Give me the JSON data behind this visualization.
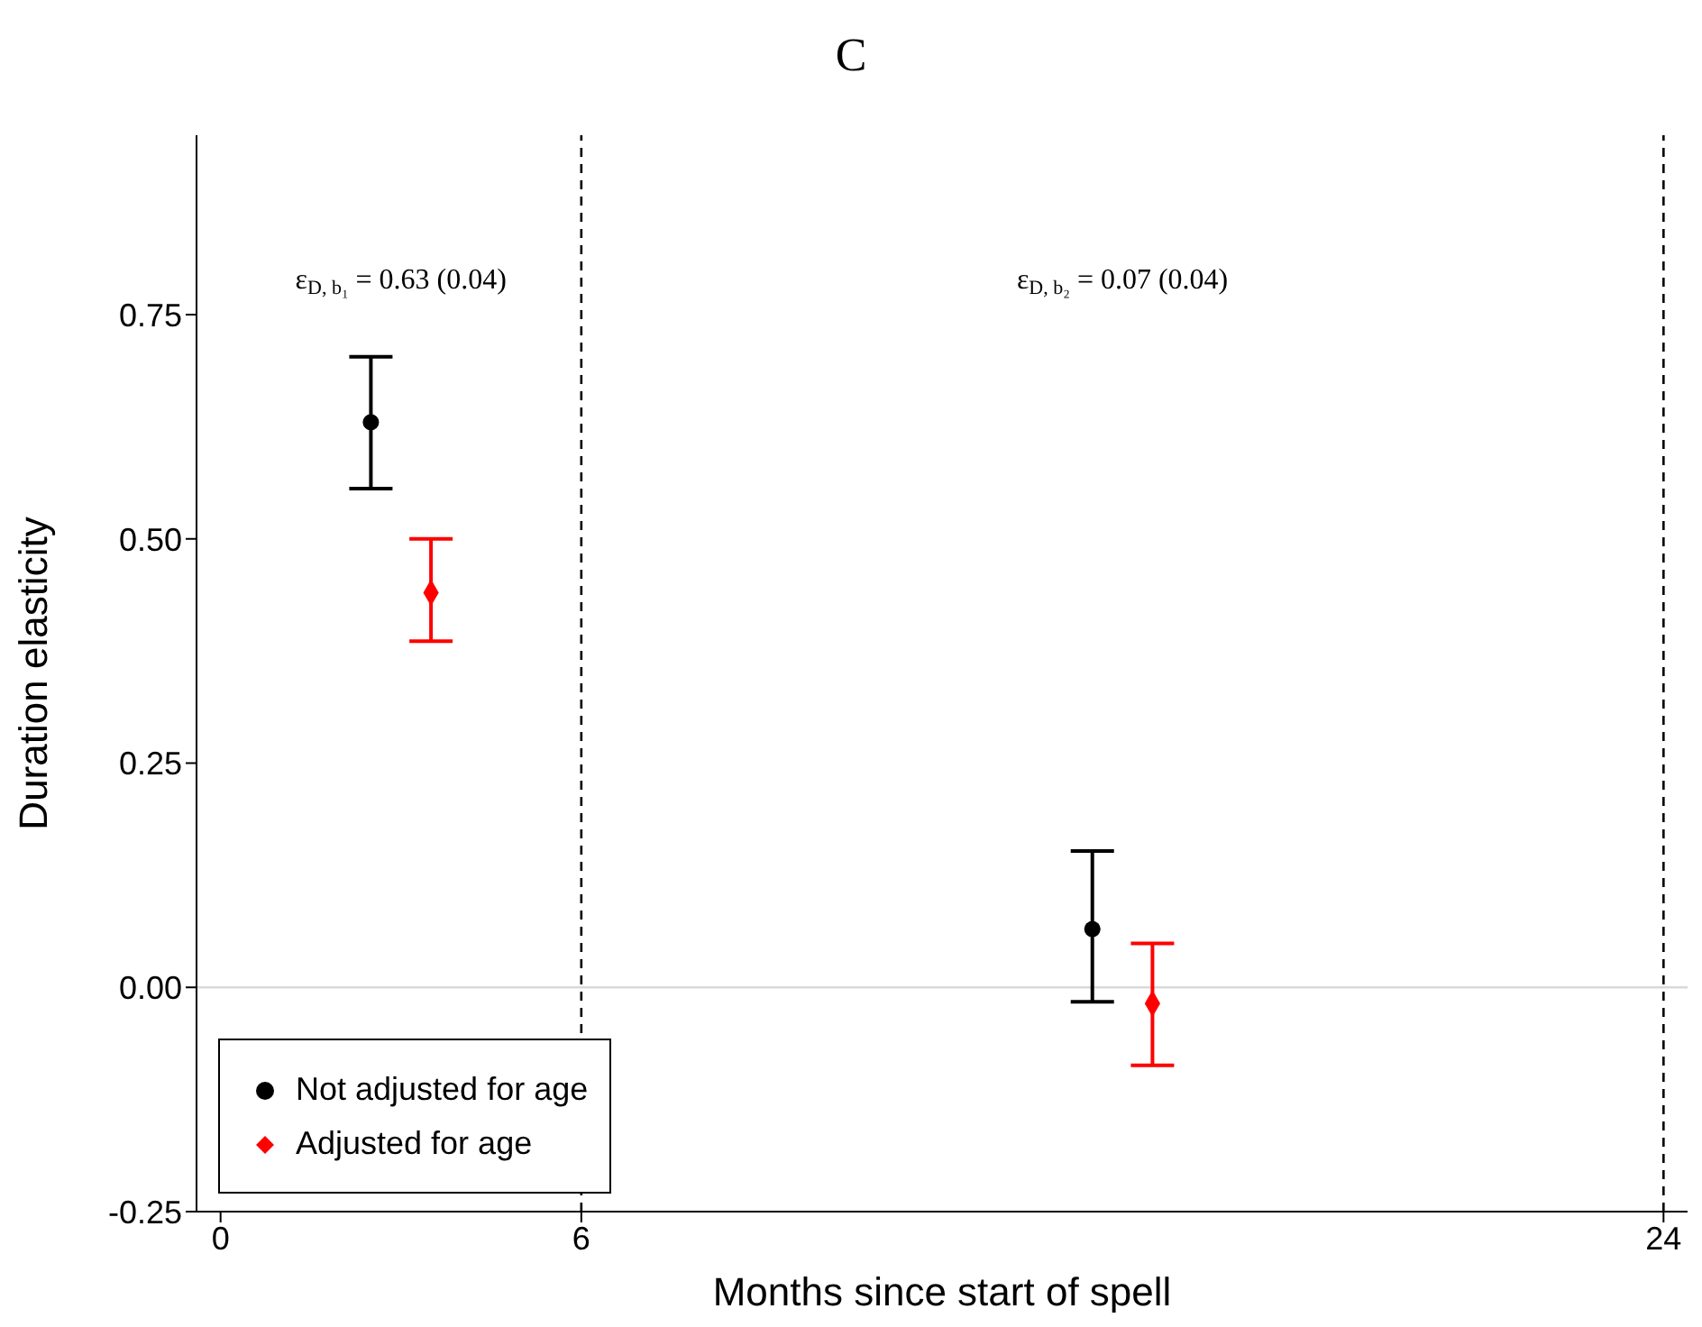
{
  "chart_data": {
    "type": "scatter",
    "title": "C",
    "xlabel": "Months since start of spell",
    "ylabel": "Duration elasticity",
    "series": [
      {
        "name": "Not adjusted for age",
        "color": "#000000",
        "marker": "circle",
        "x": [
          2.5,
          14.5
        ],
        "values": [
          0.63,
          0.065
        ],
        "errors": [
          [
            0.556,
            0.703
          ],
          [
            -0.016,
            0.152
          ]
        ]
      },
      {
        "name": "Adjusted for age",
        "color": "#ff0000",
        "marker": "diamond",
        "x": [
          3.5,
          15.5
        ],
        "values": [
          0.44,
          -0.018
        ],
        "errors": [
          [
            0.386,
            0.5
          ],
          [
            -0.087,
            0.049
          ]
        ]
      }
    ],
    "xlim": [
      -0.4,
      24.4
    ],
    "xticks": [
      0,
      6,
      24
    ],
    "ylim": [
      -0.25,
      0.95
    ],
    "yticks": [
      {
        "value": -0.25,
        "label": "-0.25"
      },
      {
        "value": 0,
        "label": "0.00"
      },
      {
        "value": 0.25,
        "label": "0.25"
      },
      {
        "value": 0.5,
        "label": "0.50"
      },
      0.75
    ],
    "ref_lines": [
      {
        "axis": "x",
        "value": 6,
        "color": "#000000",
        "line_style": "dashed"
      },
      {
        "axis": "x",
        "value": 24,
        "color": "#000000",
        "line_style": "dashed"
      },
      {
        "axis": "y",
        "value": 0,
        "color": "#d9d9d9",
        "line_style": "solid"
      }
    ],
    "annotations": [
      "ε$_{D, b₁}$ = 0.63 (0.04)",
      "ε$_{D, b₂}$ = 0.07 (0.04)"
    ],
    "grid": false,
    "legend": "bottom left"
  }
}
